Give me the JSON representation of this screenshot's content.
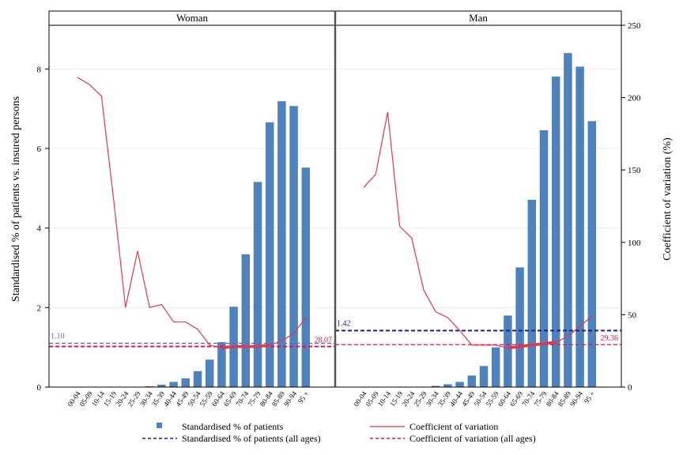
{
  "chart_data": {
    "type": "bar",
    "panels": [
      "Woman",
      "Man"
    ],
    "categories": [
      "00-04",
      "05-09",
      "10-14",
      "15-19",
      "20-24",
      "25-29",
      "30-34",
      "35-39",
      "40-44",
      "45-49",
      "50-54",
      "55-59",
      "60-64",
      "65-69",
      "70-74",
      "75-79",
      "80-84",
      "85-89",
      "90-94",
      "95 +"
    ],
    "ylabel_left": "Standardised % of patients vs. insured persons",
    "ylabel_right": "Coefficient of variation (%)",
    "ylim_left": [
      0,
      9.1
    ],
    "yticks_left": [
      0,
      2,
      4,
      6,
      8
    ],
    "ylim_right": [
      0,
      250
    ],
    "yticks_right": [
      0,
      50,
      100,
      150,
      200,
      250
    ],
    "grid": true,
    "legend_position": "bottom",
    "colors": {
      "bars": "#4f81bd",
      "cv": "#e0384e",
      "avg_pct_man": "#1a237e",
      "avg_pct_woman": "#5c6bc0",
      "avg_cv": "#d81b4a"
    },
    "series": [
      {
        "name": "Standardised % of patients",
        "kind": "bar",
        "axis": "left",
        "values": {
          "Woman": [
            0,
            0,
            0,
            0,
            0,
            0,
            0.02,
            0.06,
            0.13,
            0.22,
            0.4,
            0.69,
            1.13,
            2.02,
            3.34,
            5.16,
            6.66,
            7.19,
            7.07,
            5.52
          ],
          "Man": [
            0,
            0,
            0,
            0,
            0,
            0,
            0.03,
            0.07,
            0.13,
            0.29,
            0.53,
            1.0,
            1.8,
            3.01,
            4.71,
            6.46,
            7.81,
            8.4,
            8.06,
            6.69
          ]
        }
      },
      {
        "name": "Coefficient of variation",
        "kind": "line",
        "axis": "right",
        "values": {
          "Woman": [
            214,
            209,
            201,
            130,
            55,
            94,
            55,
            57,
            45,
            45,
            40,
            29,
            27,
            28,
            28,
            28,
            29,
            32,
            37,
            48
          ],
          "Man": [
            138,
            147,
            190,
            111,
            103,
            67,
            52,
            48,
            39,
            29,
            29,
            29,
            27,
            28,
            29,
            30,
            31,
            35,
            42,
            49
          ]
        }
      },
      {
        "name": "Standardised % of patients (all ages)",
        "kind": "hline",
        "axis": "left",
        "values": {
          "Woman": 1.1,
          "Man": 1.42
        },
        "labels": {
          "Woman": "1.10",
          "Man": "1.42"
        }
      },
      {
        "name": "Coefficient of variation (all ages)",
        "kind": "hline",
        "axis": "right",
        "values": {
          "Woman": 28.07,
          "Man": 29.36
        },
        "labels": {
          "Woman": "28.07",
          "Man": "29.36"
        }
      }
    ]
  }
}
